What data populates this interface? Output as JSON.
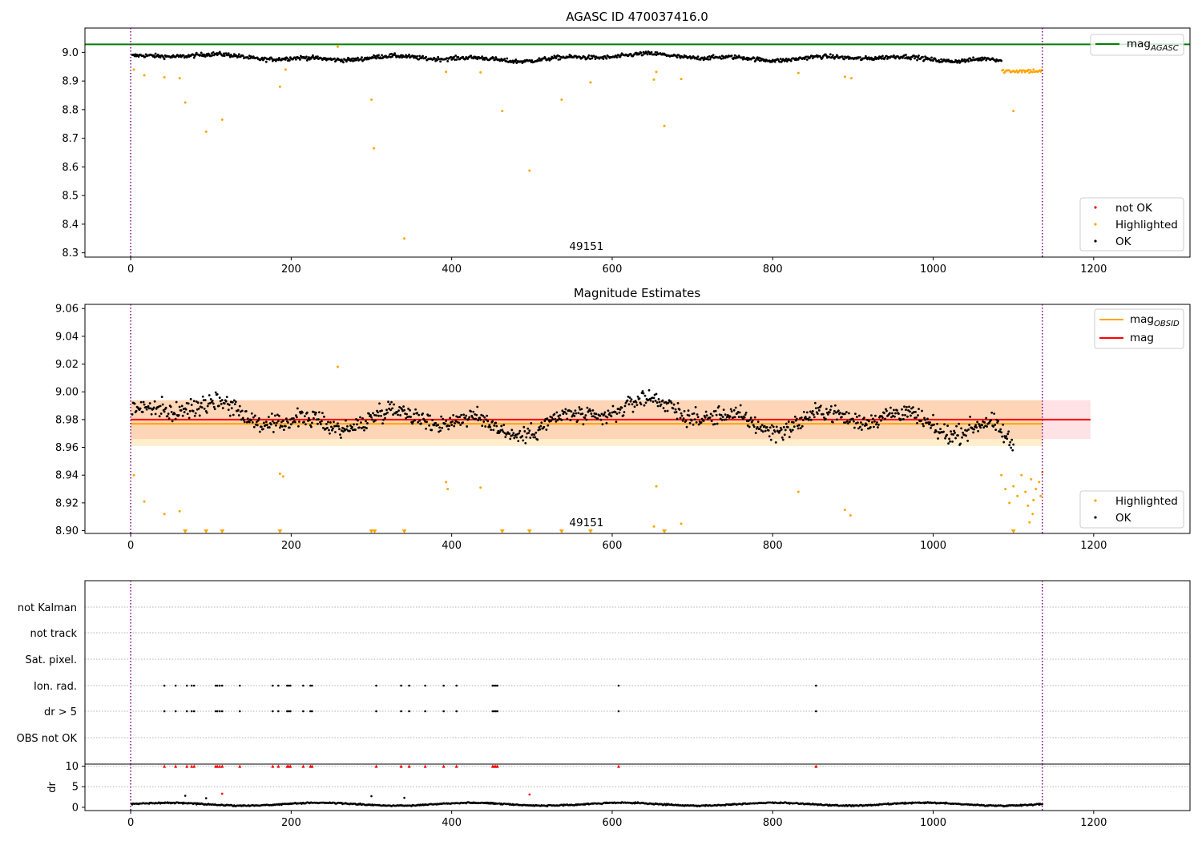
{
  "figure": {
    "background": "#ffffff"
  },
  "chart_data": [
    {
      "id": "agasc",
      "type": "scatter",
      "title": "AGASC ID 470037416.0",
      "xlim": [
        -57,
        1320
      ],
      "ylim": [
        8.285,
        9.085
      ],
      "xticks": [
        0,
        200,
        400,
        600,
        800,
        1000,
        1200
      ],
      "yticks": [
        8.3,
        8.4,
        8.5,
        8.6,
        8.7,
        8.8,
        8.9,
        9.0
      ],
      "ytick_labels": [
        "8.3",
        "8.4",
        "8.5",
        "8.6",
        "8.7",
        "8.8",
        "8.9",
        "9.0"
      ],
      "annotation": "49151",
      "annotation_x": 568,
      "vlines": [
        0,
        1136
      ],
      "hlines": [
        {
          "y": 9.028,
          "color": "#008000",
          "legend": "mag",
          "sub": "AGASC"
        }
      ],
      "legend_points": [
        {
          "label": "not OK",
          "color": "#ff0000"
        },
        {
          "label": "Highlighted",
          "color": "#ffa500"
        },
        {
          "label": "OK",
          "color": "#000000"
        }
      ],
      "series": [
        {
          "color": "#ffa500",
          "points": [
            [
              4,
              8.94
            ],
            [
              17,
              8.92
            ],
            [
              42,
              8.913
            ],
            [
              61,
              8.91
            ],
            [
              68,
              8.825
            ],
            [
              94,
              8.723
            ],
            [
              114,
              8.765
            ],
            [
              186,
              8.88
            ],
            [
              193,
              8.94
            ],
            [
              300,
              8.835
            ],
            [
              303,
              8.665
            ],
            [
              341,
              8.35
            ],
            [
              393,
              8.932
            ],
            [
              436,
              8.93
            ],
            [
              463,
              8.795
            ],
            [
              497,
              8.587
            ],
            [
              537,
              8.835
            ],
            [
              573,
              8.895
            ],
            [
              652,
              8.905
            ],
            [
              655,
              8.932
            ],
            [
              665,
              8.743
            ],
            [
              686,
              8.907
            ],
            [
              832,
              8.928
            ],
            [
              890,
              8.915
            ],
            [
              898,
              8.91
            ],
            [
              1100,
              8.795
            ],
            [
              258,
              9.02
            ]
          ]
        }
      ]
    },
    {
      "id": "estimates",
      "type": "scatter",
      "title": "Magnitude Estimates",
      "xlim": [
        -57,
        1320
      ],
      "ylim": [
        8.898,
        9.063
      ],
      "xticks": [
        0,
        200,
        400,
        600,
        800,
        1000,
        1200
      ],
      "yticks": [
        8.9,
        8.92,
        8.94,
        8.96,
        8.98,
        9.0,
        9.02,
        9.04,
        9.06
      ],
      "ytick_labels": [
        "8.90",
        "8.92",
        "8.94",
        "8.96",
        "8.98",
        "9.00",
        "9.02",
        "9.04",
        "9.06"
      ],
      "annotation": "49151",
      "annotation_x": 568,
      "vlines": [
        0,
        1136
      ],
      "bands": [
        {
          "x0": 0,
          "x1": 1196,
          "y0": 8.966,
          "y1": 8.994,
          "color": "#ff8a96",
          "opacity": 0.25
        },
        {
          "x0": 0,
          "x1": 1136,
          "y0": 8.961,
          "y1": 8.994,
          "color": "#ffa500",
          "opacity": 0.2
        }
      ],
      "hlines": [
        {
          "y": 8.98,
          "x0": 0,
          "x1": 1196,
          "color": "#ff0000",
          "legend": "mag",
          "sub": ""
        },
        {
          "y": 8.977,
          "x0": 0,
          "x1": 1136,
          "color": "#ffa500",
          "legend": "mag",
          "sub": "OBSID"
        }
      ],
      "legend_points": [
        {
          "label": "Highlighted",
          "color": "#ffa500"
        },
        {
          "label": "OK",
          "color": "#000000"
        }
      ],
      "series": [
        {
          "color": "#ffa500",
          "points": [
            [
              4,
              8.94
            ],
            [
              17,
              8.921
            ],
            [
              42,
              8.912
            ],
            [
              61,
              8.914
            ],
            [
              186,
              8.941
            ],
            [
              190,
              8.939
            ],
            [
              258,
              9.018
            ],
            [
              393,
              8.935
            ],
            [
              395,
              8.93
            ],
            [
              436,
              8.931
            ],
            [
              652,
              8.903
            ],
            [
              655,
              8.932
            ],
            [
              686,
              8.905
            ],
            [
              832,
              8.928
            ],
            [
              890,
              8.915
            ],
            [
              897,
              8.911
            ],
            [
              1085,
              8.94
            ],
            [
              1090,
              8.93
            ],
            [
              1095,
              8.92
            ],
            [
              1100,
              8.932
            ],
            [
              1105,
              8.925
            ],
            [
              1110,
              8.94
            ],
            [
              1115,
              8.928
            ],
            [
              1118,
              8.918
            ],
            [
              1122,
              8.937
            ],
            [
              1125,
              8.922
            ],
            [
              1128,
              8.93
            ],
            [
              1132,
              8.935
            ],
            [
              1134,
              8.925
            ],
            [
              1136,
              8.942
            ],
            [
              1120,
              8.906
            ],
            [
              1124,
              8.912
            ]
          ]
        }
      ],
      "triangles": [
        68,
        94,
        114,
        186,
        300,
        304,
        341,
        463,
        497,
        537,
        573,
        665,
        1100
      ]
    },
    {
      "id": "flags",
      "type": "scatter",
      "title": "",
      "xlim": [
        -57,
        1320
      ],
      "categories": [
        "not Kalman",
        "not track",
        "Sat. pixel.",
        "Ion. rad.",
        "dr > 5",
        "OBS not OK"
      ],
      "vlines": [
        0,
        1136
      ],
      "events": [
        42,
        56,
        70,
        76,
        79,
        106,
        108,
        111,
        114,
        136,
        177,
        184,
        195,
        197,
        199,
        215,
        224,
        226,
        306,
        337,
        347,
        367,
        390,
        406,
        451,
        453,
        455,
        457,
        608,
        854
      ]
    },
    {
      "id": "dr",
      "type": "scatter",
      "title": "",
      "ylabel": "dr",
      "xlim": [
        -57,
        1320
      ],
      "ylim": [
        -0.8,
        10.5
      ],
      "xticks": [
        0,
        200,
        400,
        600,
        800,
        1000,
        1200
      ],
      "yticks": [
        0,
        5,
        10
      ],
      "ytick_labels": [
        "0",
        "5",
        "10"
      ],
      "vlines": [
        0,
        1136
      ],
      "extra_points": [
        [
          68,
          2.8
        ],
        [
          94,
          2.2
        ],
        [
          114,
          3.3
        ],
        [
          300,
          2.7
        ],
        [
          341,
          2.3
        ],
        [
          497,
          3.1
        ]
      ]
    }
  ]
}
